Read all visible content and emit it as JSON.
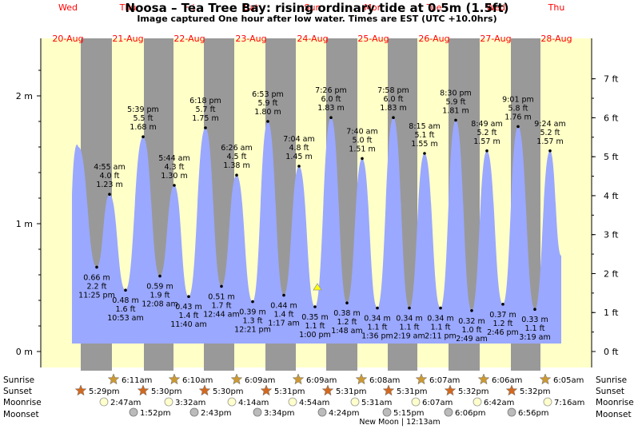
{
  "title": "Noosa – Tea Tree Bay: rising  ordinary tide at 0.5m (1.5ft)",
  "subtitle": "Image captured One hour after low water. Times are EST (UTC +10.0hrs)",
  "colors": {
    "day_bg": "#ffffc8",
    "night_bg": "#999999",
    "tide_fill": "#9aa8ff",
    "day_label": "#ff0000",
    "sun_marker": "#cc9933",
    "sunset_marker": "#d2691e",
    "moonrise_marker": "#ffffcc",
    "moonset_marker": "#bbbbbb",
    "current_marker": "#ffff00"
  },
  "days": [
    {
      "day": "Wed",
      "date": "20-Aug"
    },
    {
      "day": "Thu",
      "date": "21-Aug"
    },
    {
      "day": "Fri",
      "date": "22-Aug"
    },
    {
      "day": "Sat",
      "date": "23-Aug"
    },
    {
      "day": "Sun",
      "date": "24-Aug"
    },
    {
      "day": "Mon",
      "date": "25-Aug"
    },
    {
      "day": "Tue",
      "date": "26-Aug"
    },
    {
      "day": "Wed",
      "date": "27-Aug"
    },
    {
      "day": "Thu",
      "date": "28-Aug"
    }
  ],
  "chart_data": {
    "type": "area",
    "y_left_label_ticks": [
      "0 m",
      "1 m",
      "2 m"
    ],
    "y_right_label_ticks": [
      "0 ft",
      "1 ft",
      "2 ft",
      "3 ft",
      "4 ft",
      "5 ft",
      "6 ft",
      "7 ft"
    ],
    "ylim_m": [
      0,
      2.4
    ],
    "extremes": [
      {
        "type": "high",
        "time": "",
        "m": "",
        "ft": "",
        "h": 1.6
      },
      {
        "type": "low",
        "time": "11:25 pm",
        "m": "0.66 m",
        "ft": "2.2 ft",
        "h": 0.66
      },
      {
        "type": "high",
        "time": "4:55 am",
        "m": "1.23 m",
        "ft": "4.0 ft",
        "h": 1.23
      },
      {
        "type": "low",
        "time": "10:53 am",
        "m": "0.48 m",
        "ft": "1.6 ft",
        "h": 0.48
      },
      {
        "type": "high",
        "time": "5:39 pm",
        "m": "1.68 m",
        "ft": "5.5 ft",
        "h": 1.68
      },
      {
        "type": "low",
        "time": "12:08 am",
        "m": "0.59 m",
        "ft": "1.9 ft",
        "h": 0.59
      },
      {
        "type": "high",
        "time": "5:44 am",
        "m": "1.30 m",
        "ft": "4.3 ft",
        "h": 1.3
      },
      {
        "type": "low",
        "time": "11:40 am",
        "m": "0.43 m",
        "ft": "1.4 ft",
        "h": 0.43
      },
      {
        "type": "high",
        "time": "6:18 pm",
        "m": "1.75 m",
        "ft": "5.7 ft",
        "h": 1.75
      },
      {
        "type": "low",
        "time": "12:44 am",
        "m": "0.51 m",
        "ft": "1.7 ft",
        "h": 0.51
      },
      {
        "type": "high",
        "time": "6:26 am",
        "m": "1.38 m",
        "ft": "4.5 ft",
        "h": 1.38
      },
      {
        "type": "low",
        "time": "12:21 pm",
        "m": "0.39 m",
        "ft": "1.3 ft",
        "h": 0.39
      },
      {
        "type": "high",
        "time": "6:53 pm",
        "m": "1.80 m",
        "ft": "5.9 ft",
        "h": 1.8
      },
      {
        "type": "low",
        "time": "1:17 am",
        "m": "0.44 m",
        "ft": "1.4 ft",
        "h": 0.44
      },
      {
        "type": "high",
        "time": "7:04 am",
        "m": "1.45 m",
        "ft": "4.8 ft",
        "h": 1.45
      },
      {
        "type": "low",
        "time": "1:00 pm",
        "m": "0.35 m",
        "ft": "1.1 ft",
        "h": 0.35
      },
      {
        "type": "high",
        "time": "7:26 pm",
        "m": "1.83 m",
        "ft": "6.0 ft",
        "h": 1.83
      },
      {
        "type": "low",
        "time": "1:48 am",
        "m": "0.38 m",
        "ft": "1.2 ft",
        "h": 0.38
      },
      {
        "type": "high",
        "time": "7:40 am",
        "m": "1.51 m",
        "ft": "5.0 ft",
        "h": 1.51
      },
      {
        "type": "low",
        "time": "1:36 pm",
        "m": "0.34 m",
        "ft": "1.1 ft",
        "h": 0.34
      },
      {
        "type": "high",
        "time": "7:58 pm",
        "m": "1.83 m",
        "ft": "6.0 ft",
        "h": 1.83
      },
      {
        "type": "low",
        "time": "2:19 am",
        "m": "0.34 m",
        "ft": "1.1 ft",
        "h": 0.34
      },
      {
        "type": "high",
        "time": "8:15 am",
        "m": "1.55 m",
        "ft": "5.1 ft",
        "h": 1.55
      },
      {
        "type": "low",
        "time": "2:11 pm",
        "m": "0.34 m",
        "ft": "1.1 ft",
        "h": 0.34
      },
      {
        "type": "high",
        "time": "8:30 pm",
        "m": "1.81 m",
        "ft": "5.9 ft",
        "h": 1.81
      },
      {
        "type": "low",
        "time": "2:49 am",
        "m": "0.32 m",
        "ft": "1.0 ft",
        "h": 0.32
      },
      {
        "type": "high",
        "time": "8:49 am",
        "m": "1.57 m",
        "ft": "5.2 ft",
        "h": 1.57
      },
      {
        "type": "low",
        "time": "2:46 pm",
        "m": "0.37 m",
        "ft": "1.2 ft",
        "h": 0.37
      },
      {
        "type": "high",
        "time": "9:01 pm",
        "m": "1.76 m",
        "ft": "5.8 ft",
        "h": 1.76
      },
      {
        "type": "low",
        "time": "3:19 am",
        "m": "0.33 m",
        "ft": "1.1 ft",
        "h": 0.33
      },
      {
        "type": "high",
        "time": "9:24 am",
        "m": "1.57 m",
        "ft": "5.2 ft",
        "h": 1.57
      },
      {
        "type": "end",
        "time": "",
        "m": "",
        "ft": "",
        "h": 0.75
      }
    ]
  },
  "legend_labels": {
    "sunrise": "Sunrise",
    "sunset": "Sunset",
    "moonrise": "Moonrise",
    "moonset": "Moonset"
  },
  "sunrise": [
    "6:11am",
    "6:10am",
    "6:09am",
    "6:09am",
    "6:08am",
    "6:07am",
    "6:06am",
    "6:05am"
  ],
  "sunset": [
    "5:29pm",
    "5:30pm",
    "5:30pm",
    "5:31pm",
    "5:31pm",
    "5:31pm",
    "5:32pm",
    "5:32pm"
  ],
  "moonrise": [
    "2:47am",
    "3:32am",
    "4:14am",
    "4:54am",
    "5:31am",
    "6:07am",
    "6:42am",
    "7:16am"
  ],
  "moonset": [
    "1:52pm",
    "2:43pm",
    "3:34pm",
    "4:24pm",
    "5:15pm",
    "6:06pm",
    "6:56pm"
  ],
  "moon_phase_text": "New Moon | 12:13am"
}
